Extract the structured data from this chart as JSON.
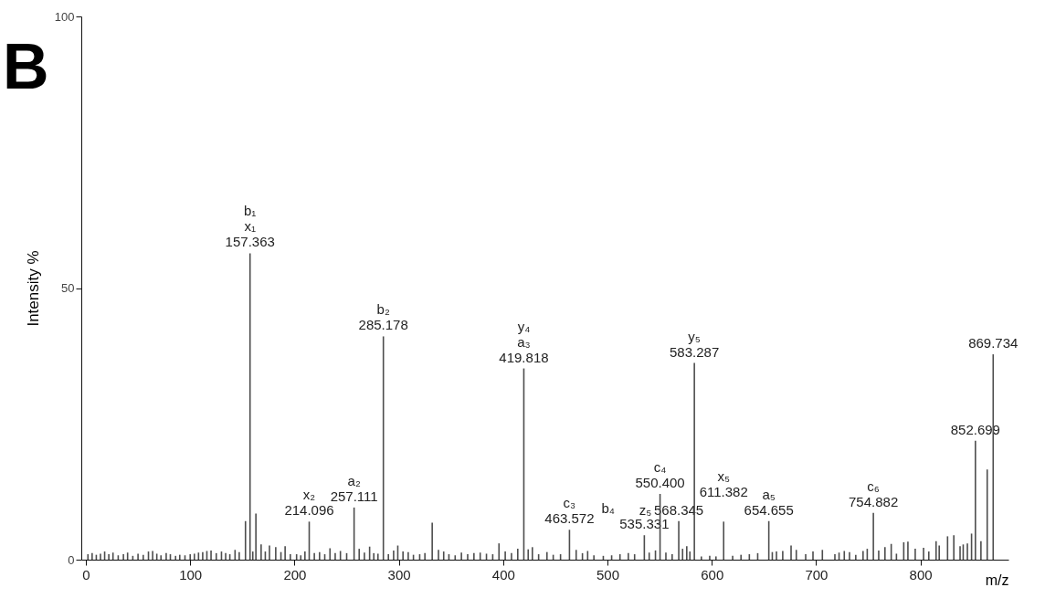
{
  "chart_data": {
    "type": "bar",
    "title": "B",
    "xlabel": "m/z",
    "ylabel": "Intensity %",
    "color": "#4d4d4d",
    "xlim": [
      0,
      880
    ],
    "ylim": [
      0,
      100
    ],
    "xticks": [
      0,
      100,
      200,
      300,
      400,
      500,
      600,
      700,
      800
    ],
    "yticks": [
      0,
      50,
      100
    ],
    "x": [
      2,
      6,
      10,
      14,
      18,
      22,
      26,
      31,
      36,
      40,
      45,
      50,
      55,
      60,
      64,
      68,
      72,
      77,
      81,
      86,
      90,
      95,
      100,
      104,
      108,
      112,
      116,
      120,
      125,
      130,
      134,
      138,
      143,
      147,
      153,
      157.363,
      160,
      163,
      168,
      172,
      176,
      182,
      187,
      191,
      196,
      202,
      206,
      210,
      214.096,
      219,
      224,
      229,
      234,
      239,
      244,
      250,
      257.111,
      262,
      267,
      272,
      276,
      280,
      285.178,
      290,
      295,
      299,
      304,
      309,
      314,
      320,
      325,
      332,
      338,
      343,
      348,
      354,
      360,
      366,
      372,
      378,
      384,
      390,
      396,
      402,
      408,
      414,
      419.818,
      424,
      428,
      434,
      442,
      448,
      455,
      463.572,
      470,
      476,
      481,
      487,
      496,
      504,
      512,
      520,
      526,
      535.331,
      540,
      546,
      550.4,
      556,
      562,
      568.345,
      572,
      576,
      579,
      583.287,
      590,
      598,
      604,
      611.382,
      620,
      628,
      636,
      644,
      654.655,
      658,
      662,
      668,
      676,
      681,
      690,
      697,
      706,
      718,
      722,
      727,
      732,
      738,
      745,
      749,
      754.882,
      760,
      766,
      772,
      777,
      784,
      788,
      795,
      803,
      808,
      815,
      818,
      826,
      832,
      838,
      841,
      845,
      849,
      852.699,
      858,
      864,
      869.734
    ],
    "values": [
      1.0,
      1.2,
      0.9,
      1.1,
      1.5,
      1.0,
      1.3,
      0.8,
      1.0,
      1.3,
      0.7,
      1.1,
      0.9,
      1.5,
      1.6,
      1.1,
      0.8,
      1.2,
      1.0,
      0.7,
      0.9,
      0.8,
      1.0,
      1.1,
      1.3,
      1.4,
      1.6,
      1.7,
      1.2,
      1.5,
      1.2,
      1.0,
      1.8,
      1.4,
      7.1,
      56.4,
      1.5,
      8.5,
      2.8,
      1.5,
      2.6,
      2.3,
      1.4,
      2.5,
      1.0,
      1.0,
      0.8,
      1.5,
      7.0,
      1.2,
      1.4,
      1.0,
      2.1,
      1.2,
      1.6,
      1.2,
      9.6,
      2.0,
      1.3,
      2.4,
      1.2,
      1.1,
      41.1,
      1.0,
      1.7,
      2.6,
      1.5,
      1.4,
      0.9,
      1.0,
      1.2,
      6.8,
      1.8,
      1.5,
      1.0,
      0.8,
      1.3,
      1.0,
      1.2,
      1.3,
      1.1,
      1.0,
      3.0,
      1.5,
      1.2,
      2.0,
      35.2,
      1.9,
      2.3,
      1.0,
      1.4,
      0.9,
      1.0,
      5.5,
      1.8,
      1.2,
      1.6,
      0.8,
      0.7,
      0.8,
      1.0,
      1.2,
      1.0,
      4.5,
      1.3,
      1.7,
      12.1,
      1.3,
      1.0,
      7.1,
      2.0,
      2.5,
      1.5,
      36.2,
      0.6,
      0.7,
      0.6,
      7.0,
      0.7,
      0.9,
      1.0,
      1.2,
      7.1,
      1.4,
      1.5,
      1.6,
      2.6,
      1.8,
      1.0,
      1.5,
      1.8,
      1.0,
      1.3,
      1.6,
      1.4,
      0.9,
      1.6,
      2.0,
      8.6,
      1.7,
      2.3,
      2.9,
      1.1,
      3.2,
      3.3,
      2.0,
      2.2,
      1.5,
      3.4,
      2.6,
      4.3,
      4.5,
      2.5,
      2.8,
      3.0,
      4.8,
      21.9,
      3.4,
      16.6,
      37.8
    ],
    "annotations": [
      {
        "text": "b₁",
        "x": 157.363,
        "y": 56.4
      },
      {
        "text": "x₁",
        "x": 157.363,
        "y": 56.4
      },
      {
        "text": "157.363",
        "x": 157.363,
        "y": 56.4
      },
      {
        "text": "b₂",
        "x": 285.178,
        "y": 41.1
      },
      {
        "text": "285.178",
        "x": 285.178,
        "y": 41.1
      },
      {
        "text": "a₂",
        "x": 257.111,
        "y": 9.6
      },
      {
        "text": "257.111",
        "x": 257.111,
        "y": 9.6
      },
      {
        "text": "x₂",
        "x": 214.096,
        "y": 7.0
      },
      {
        "text": "214.096",
        "x": 214.096,
        "y": 7.0
      },
      {
        "text": "y₄",
        "x": 419.818,
        "y": 35.2
      },
      {
        "text": "a₃",
        "x": 419.818,
        "y": 35.2
      },
      {
        "text": "419.818",
        "x": 419.818,
        "y": 35.2
      },
      {
        "text": "c₃",
        "x": 463.572,
        "y": 5.5
      },
      {
        "text": "463.572",
        "x": 463.572,
        "y": 5.5
      },
      {
        "text": "c₄",
        "x": 550.4,
        "y": 12.1
      },
      {
        "text": "550.400",
        "x": 550.4,
        "y": 12.1
      },
      {
        "text": "b₄",
        "x": 535.331,
        "y": 4.5
      },
      {
        "text": "535.331",
        "x": 535.331,
        "y": 4.5
      },
      {
        "text": "z₅",
        "x": 568.345,
        "y": 7.1
      },
      {
        "text": "568.345",
        "x": 568.345,
        "y": 7.1
      },
      {
        "text": "y₅",
        "x": 583.287,
        "y": 36.2
      },
      {
        "text": "583.287",
        "x": 583.287,
        "y": 36.2
      },
      {
        "text": "x₅",
        "x": 611.382,
        "y": 7.0
      },
      {
        "text": "611.382",
        "x": 611.382,
        "y": 7.0
      },
      {
        "text": "a₅",
        "x": 654.655,
        "y": 7.1
      },
      {
        "text": "654.655",
        "x": 654.655,
        "y": 7.1
      },
      {
        "text": "c₆",
        "x": 754.882,
        "y": 8.6
      },
      {
        "text": "754.882",
        "x": 754.882,
        "y": 8.6
      },
      {
        "text": "852.699",
        "x": 852.699,
        "y": 21.9
      },
      {
        "text": "869.734",
        "x": 869.734,
        "y": 37.8
      }
    ]
  }
}
